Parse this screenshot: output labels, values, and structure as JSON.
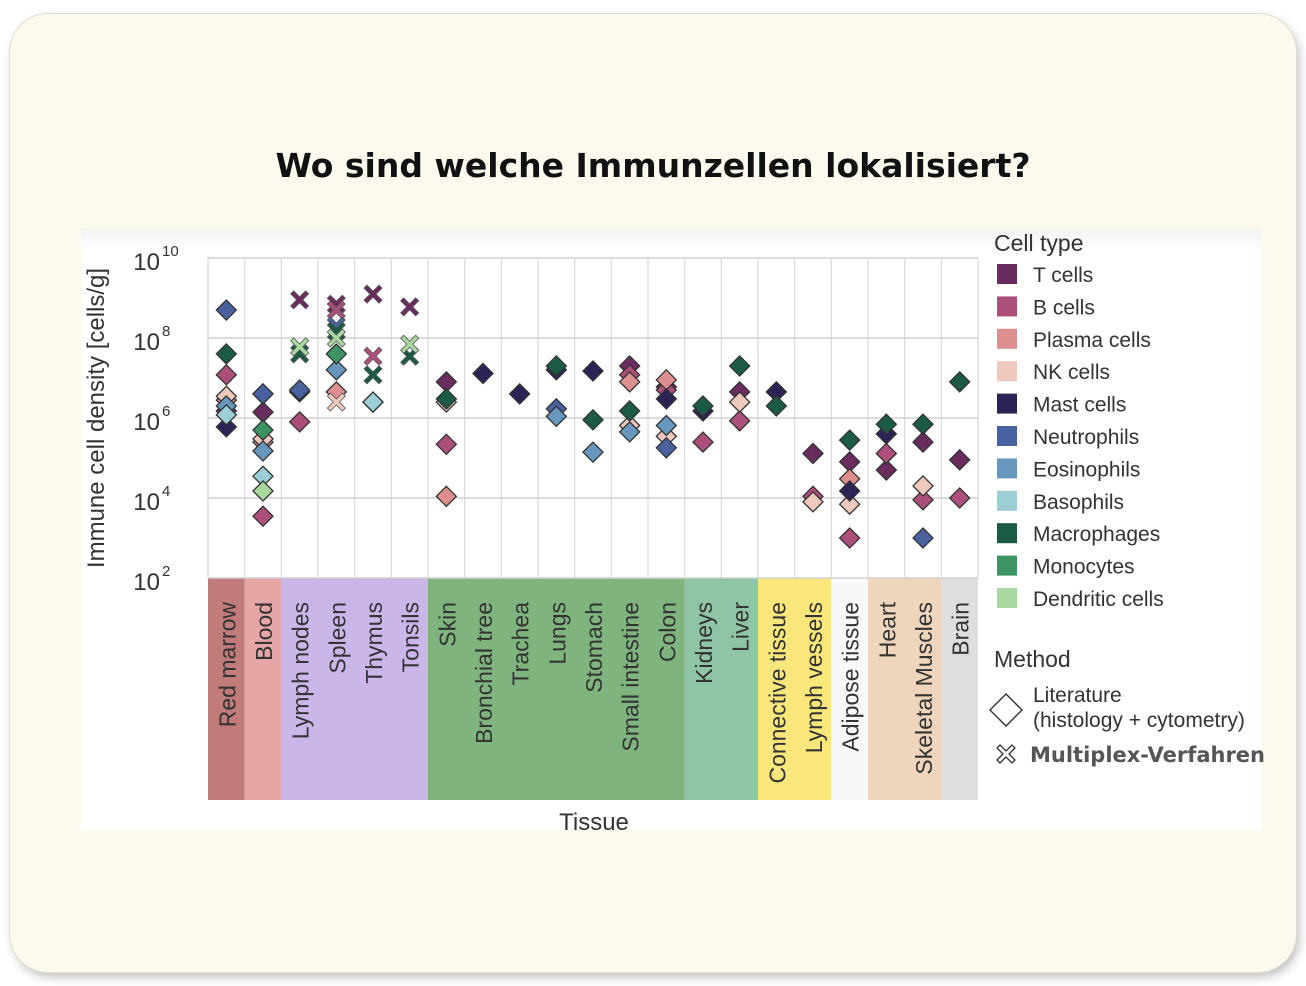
{
  "slide": {
    "title": "Wo sind welche Immunzellen lokalisiert?"
  },
  "chart_data": {
    "type": "scatter",
    "ylabel": "Immune cell density [cells/g]",
    "xlabel": "Tissue",
    "y_scale": "log",
    "ylim": [
      100,
      10000000000
    ],
    "y_ticks": [
      {
        "base": "10",
        "exp": "2",
        "value": 100
      },
      {
        "base": "10",
        "exp": "4",
        "value": 10000
      },
      {
        "base": "10",
        "exp": "6",
        "value": 1000000
      },
      {
        "base": "10",
        "exp": "8",
        "value": 100000000
      },
      {
        "base": "10",
        "exp": "10",
        "value": 10000000000
      }
    ],
    "categories": [
      "Red marrow",
      "Blood",
      "Lymph nodes",
      "Spleen",
      "Thymus",
      "Tonsils",
      "Skin",
      "Bronchial tree",
      "Trachea",
      "Lungs",
      "Stomach",
      "Small intestine",
      "Colon",
      "Kidneys",
      "Liver",
      "Connective tissue",
      "Lymph vessels",
      "Adipose tissue",
      "Heart",
      "Skeletal Muscles",
      "Brain"
    ],
    "tissue_groups": [
      {
        "first": 0,
        "last": 0,
        "color": "#c17b7b"
      },
      {
        "first": 1,
        "last": 1,
        "color": "#e6a6a6"
      },
      {
        "first": 2,
        "last": 5,
        "color": "#cbb6ea"
      },
      {
        "first": 6,
        "last": 12,
        "color": "#7fb47f"
      },
      {
        "first": 13,
        "last": 14,
        "color": "#8fc4a6"
      },
      {
        "first": 15,
        "last": 16,
        "color": "#fae77c"
      },
      {
        "first": 17,
        "last": 17,
        "color": "#f8f8f8"
      },
      {
        "first": 18,
        "last": 19,
        "color": "#eed5bb"
      },
      {
        "first": 20,
        "last": 20,
        "color": "#dedede"
      }
    ],
    "grid": true,
    "legend_position": "right",
    "legend": {
      "cell_type_title": "Cell type",
      "method_title": "Method",
      "methods": [
        {
          "label_line1": "Literature",
          "label_line2": "(histology + cytometry)",
          "marker": "diamond"
        },
        {
          "label_line1": "Multiplex-Verfahren",
          "label_line2": "",
          "marker": "cross"
        }
      ]
    },
    "series": [
      {
        "name": "T cells",
        "color": "#6a2c5f",
        "points": [
          {
            "tissue": 0,
            "value": 1500000,
            "m": "d"
          },
          {
            "tissue": 1,
            "value": 1400000,
            "m": "d"
          },
          {
            "tissue": 2,
            "value": 900000000,
            "m": "x"
          },
          {
            "tissue": 3,
            "value": 700000000,
            "m": "x"
          },
          {
            "tissue": 4,
            "value": 1250000000,
            "m": "x"
          },
          {
            "tissue": 5,
            "value": 600000000,
            "m": "x"
          },
          {
            "tissue": 6,
            "value": 8000000,
            "m": "d"
          },
          {
            "tissue": 11,
            "value": 20000000,
            "m": "d"
          },
          {
            "tissue": 12,
            "value": 6000000,
            "m": "d"
          },
          {
            "tissue": 14,
            "value": 4500000,
            "m": "d"
          },
          {
            "tissue": 16,
            "value": 130000,
            "m": "d"
          },
          {
            "tissue": 17,
            "value": 80000,
            "m": "d"
          },
          {
            "tissue": 18,
            "value": 50000,
            "m": "d"
          },
          {
            "tissue": 19,
            "value": 250000,
            "m": "d"
          },
          {
            "tissue": 20,
            "value": 90000,
            "m": "d"
          }
        ]
      },
      {
        "name": "B cells",
        "color": "#ad4f7b",
        "points": [
          {
            "tissue": 0,
            "value": 12000000,
            "m": "d"
          },
          {
            "tissue": 1,
            "value": 3500,
            "m": "d"
          },
          {
            "tissue": 2,
            "value": 800000,
            "m": "d"
          },
          {
            "tissue": 3,
            "value": 500000000,
            "m": "x"
          },
          {
            "tissue": 4,
            "value": 35000000,
            "m": "x"
          },
          {
            "tissue": 6,
            "value": 220000,
            "m": "d"
          },
          {
            "tissue": 11,
            "value": 12000000,
            "m": "d"
          },
          {
            "tissue": 12,
            "value": 5000000,
            "m": "d"
          },
          {
            "tissue": 13,
            "value": 250000,
            "m": "d"
          },
          {
            "tissue": 14,
            "value": 850000,
            "m": "d"
          },
          {
            "tissue": 16,
            "value": 11000,
            "m": "d"
          },
          {
            "tissue": 17,
            "value": 1000,
            "m": "d"
          },
          {
            "tissue": 18,
            "value": 130000,
            "m": "d"
          },
          {
            "tissue": 19,
            "value": 9000,
            "m": "d"
          },
          {
            "tissue": 20,
            "value": 10000,
            "m": "d"
          }
        ]
      },
      {
        "name": "Plasma cells",
        "color": "#dc8f8e",
        "points": [
          {
            "tissue": 0,
            "value": 2800000,
            "m": "d"
          },
          {
            "tissue": 1,
            "value": 250000,
            "m": "d"
          },
          {
            "tissue": 3,
            "value": 4500000,
            "m": "d"
          },
          {
            "tissue": 6,
            "value": 11000,
            "m": "d"
          },
          {
            "tissue": 11,
            "value": 8000000,
            "m": "d"
          },
          {
            "tissue": 12,
            "value": 9000000,
            "m": "d"
          },
          {
            "tissue": 17,
            "value": 30000,
            "m": "d"
          }
        ]
      },
      {
        "name": "NK cells",
        "color": "#efc9bd",
        "points": [
          {
            "tissue": 0,
            "value": 3500000,
            "m": "d"
          },
          {
            "tissue": 1,
            "value": 300000,
            "m": "d"
          },
          {
            "tissue": 3,
            "value": 2500000,
            "m": "x"
          },
          {
            "tissue": 4,
            "value": 2500000,
            "m": "d"
          },
          {
            "tissue": 6,
            "value": 2500000,
            "m": "d"
          },
          {
            "tissue": 11,
            "value": 650000,
            "m": "d"
          },
          {
            "tissue": 12,
            "value": 350000,
            "m": "d"
          },
          {
            "tissue": 14,
            "value": 2500000,
            "m": "d"
          },
          {
            "tissue": 16,
            "value": 8000,
            "m": "d"
          },
          {
            "tissue": 17,
            "value": 7000,
            "m": "d"
          },
          {
            "tissue": 19,
            "value": 20000,
            "m": "d"
          }
        ]
      },
      {
        "name": "Mast cells",
        "color": "#2b2356",
        "points": [
          {
            "tissue": 0,
            "value": 600000,
            "m": "d"
          },
          {
            "tissue": 1,
            "value": 4000000,
            "m": "d"
          },
          {
            "tissue": 2,
            "value": 4500000,
            "m": "d"
          },
          {
            "tissue": 7,
            "value": 13000000,
            "m": "d"
          },
          {
            "tissue": 8,
            "value": 4000000,
            "m": "d"
          },
          {
            "tissue": 9,
            "value": 16000000,
            "m": "d"
          },
          {
            "tissue": 10,
            "value": 15000000,
            "m": "d"
          },
          {
            "tissue": 12,
            "value": 3000000,
            "m": "d"
          },
          {
            "tissue": 13,
            "value": 1500000,
            "m": "d"
          },
          {
            "tissue": 15,
            "value": 4500000,
            "m": "d"
          },
          {
            "tissue": 17,
            "value": 15000,
            "m": "d"
          },
          {
            "tissue": 18,
            "value": 400000,
            "m": "d"
          }
        ]
      },
      {
        "name": "Neutrophils",
        "color": "#4a619f",
        "points": [
          {
            "tissue": 0,
            "value": 500000000,
            "m": "d"
          },
          {
            "tissue": 1,
            "value": 4000000,
            "m": "d"
          },
          {
            "tissue": 2,
            "value": 5000000,
            "m": "d"
          },
          {
            "tissue": 3,
            "value": 200000000,
            "m": "x"
          },
          {
            "tissue": 9,
            "value": 1700000,
            "m": "d"
          },
          {
            "tissue": 12,
            "value": 180000,
            "m": "d"
          },
          {
            "tissue": 19,
            "value": 1000,
            "m": "d"
          }
        ]
      },
      {
        "name": "Eosinophils",
        "color": "#6897be",
        "points": [
          {
            "tissue": 0,
            "value": 2000000,
            "m": "d"
          },
          {
            "tissue": 1,
            "value": 150000,
            "m": "d"
          },
          {
            "tissue": 3,
            "value": 16000000,
            "m": "d"
          },
          {
            "tissue": 9,
            "value": 1100000,
            "m": "d"
          },
          {
            "tissue": 10,
            "value": 140000,
            "m": "d"
          },
          {
            "tissue": 11,
            "value": 450000,
            "m": "d"
          },
          {
            "tissue": 12,
            "value": 650000,
            "m": "d"
          }
        ]
      },
      {
        "name": "Basophils",
        "color": "#9bcfd5",
        "points": [
          {
            "tissue": 0,
            "value": 1200000,
            "m": "d"
          },
          {
            "tissue": 1,
            "value": 35000,
            "m": "d"
          },
          {
            "tissue": 4,
            "value": 2500000,
            "m": "d"
          }
        ]
      },
      {
        "name": "Macrophages",
        "color": "#1b5b45",
        "points": [
          {
            "tissue": 0,
            "value": 40000000,
            "m": "d"
          },
          {
            "tissue": 2,
            "value": 40000000,
            "m": "x"
          },
          {
            "tissue": 3,
            "value": 150000000,
            "m": "x"
          },
          {
            "tissue": 4,
            "value": 12000000,
            "m": "x"
          },
          {
            "tissue": 5,
            "value": 35000000,
            "m": "x"
          },
          {
            "tissue": 6,
            "value": 3000000,
            "m": "d"
          },
          {
            "tissue": 9,
            "value": 20000000,
            "m": "d"
          },
          {
            "tissue": 10,
            "value": 900000,
            "m": "d"
          },
          {
            "tissue": 11,
            "value": 1500000,
            "m": "d"
          },
          {
            "tissue": 13,
            "value": 2000000,
            "m": "d"
          },
          {
            "tissue": 14,
            "value": 20000000,
            "m": "d"
          },
          {
            "tissue": 15,
            "value": 2000000,
            "m": "d"
          },
          {
            "tissue": 17,
            "value": 280000,
            "m": "d"
          },
          {
            "tissue": 18,
            "value": 700000,
            "m": "d"
          },
          {
            "tissue": 19,
            "value": 700000,
            "m": "d"
          },
          {
            "tissue": 20,
            "value": 8000000,
            "m": "d"
          }
        ]
      },
      {
        "name": "Monocytes",
        "color": "#3d9462",
        "points": [
          {
            "tissue": 1,
            "value": 500000,
            "m": "d"
          },
          {
            "tissue": 3,
            "value": 40000000,
            "m": "d"
          }
        ]
      },
      {
        "name": "Dendritic cells",
        "color": "#a9d9a0",
        "points": [
          {
            "tissue": 1,
            "value": 15000,
            "m": "d"
          },
          {
            "tissue": 2,
            "value": 60000000,
            "m": "x"
          },
          {
            "tissue": 3,
            "value": 100000000,
            "m": "x"
          },
          {
            "tissue": 5,
            "value": 70000000,
            "m": "x"
          }
        ]
      }
    ]
  }
}
